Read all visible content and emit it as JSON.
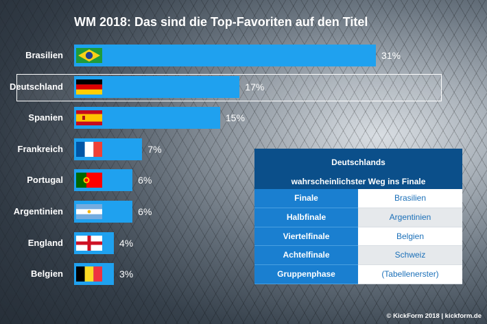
{
  "chart_data": {
    "type": "bar",
    "orientation": "horizontal",
    "title": "WM 2018: Das sind die Top-Favoriten auf den Titel",
    "categories": [
      "Brasilien",
      "Deutschland",
      "Spanien",
      "Frankreich",
      "Portugal",
      "Argentinien",
      "England",
      "Belgien"
    ],
    "values": [
      31,
      17,
      15,
      7,
      6,
      6,
      4,
      3
    ],
    "value_labels": [
      "31%",
      "17%",
      "15%",
      "7%",
      "6%",
      "6%",
      "4%",
      "3%"
    ],
    "flags": [
      "brazil-flag-icon",
      "germany-flag-icon",
      "spain-flag-icon",
      "france-flag-icon",
      "portugal-flag-icon",
      "argentina-flag-icon",
      "england-flag-icon",
      "belgium-flag-icon"
    ],
    "highlighted": "Deutschland",
    "bar_color": "#1fa1ef",
    "grid": false
  },
  "route_panel": {
    "title_line1": "Deutschlands",
    "title_line2": "wahrscheinlichster Weg ins Finale",
    "rows": [
      {
        "stage": "Finale",
        "opponent": "Brasilien"
      },
      {
        "stage": "Halbfinale",
        "opponent": "Argentinien"
      },
      {
        "stage": "Viertelfinale",
        "opponent": "Belgien"
      },
      {
        "stage": "Achtelfinale",
        "opponent": "Schweiz"
      },
      {
        "stage": "Gruppenphase",
        "opponent": "(Tabellenerster)"
      }
    ],
    "header_color": "#0b4f8a",
    "key_color": "#1a7fd0"
  },
  "credit": "© KickForm 2018 | kickform.de"
}
